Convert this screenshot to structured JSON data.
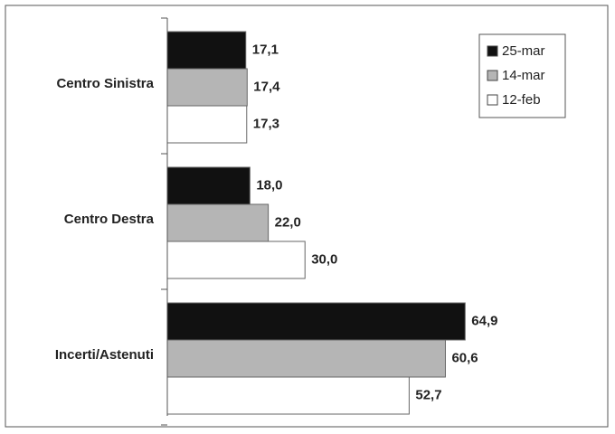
{
  "chart_data": {
    "type": "bar",
    "orientation": "horizontal",
    "categories": [
      "Centro Sinistra",
      "Centro Destra",
      "Incerti/Astenuti"
    ],
    "series": [
      {
        "name": "25-mar",
        "color": "#111111",
        "values": [
          17.1,
          18.0,
          64.9
        ],
        "value_labels": [
          "17,1",
          "18,0",
          "64,9"
        ]
      },
      {
        "name": "14-mar",
        "color": "#b5b5b5",
        "values": [
          17.4,
          22.0,
          60.6
        ],
        "value_labels": [
          "17,4",
          "22,0",
          "60,6"
        ]
      },
      {
        "name": "12-feb",
        "color": "#ffffff",
        "values": [
          17.3,
          30.0,
          52.7
        ],
        "value_labels": [
          "17,3",
          "30,0",
          "52,7"
        ]
      }
    ],
    "xlim": [
      0,
      95
    ],
    "legend": "upper-right"
  }
}
